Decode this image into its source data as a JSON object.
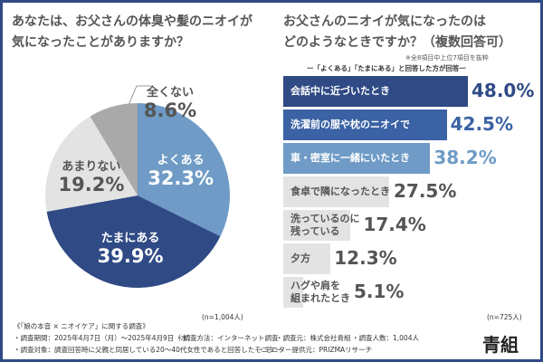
{
  "left": {
    "title_line1": "あなたは、お父さんの体臭や髪のニオイが",
    "title_line2": "気になったことがありますか？",
    "n": "(n=1,004人)"
  },
  "right": {
    "title_line1": "お父さんのニオイが気になったのは",
    "title_line2": "どのようなときですか？（複数回答可）",
    "note": "※全8項目中上位7項目を抜粋",
    "subtitle": "ー「よくある」「たまにある」と回答した方が回答ー",
    "n": "(n=725人)"
  },
  "chart_data": [
    {
      "type": "pie",
      "title": "あなたは、お父さんの体臭や髪のニオイが気になったことがありますか？",
      "slices": [
        {
          "label": "よくある",
          "value": 32.3,
          "display": "32.3%",
          "color": "#6f9bc6",
          "text_color": "#ffffff"
        },
        {
          "label": "たまにある",
          "value": 39.9,
          "display": "39.9%",
          "color": "#2f4a85",
          "text_color": "#ffffff"
        },
        {
          "label": "あまりない",
          "value": 19.2,
          "display": "19.2%",
          "color": "#e3e3e3",
          "text_color": "#555555"
        },
        {
          "label": "全くない",
          "value": 8.6,
          "display": "8.6%",
          "color": "#a9a9a9",
          "text_color": "#555555"
        }
      ]
    },
    {
      "type": "bar",
      "orientation": "horizontal",
      "title": "お父さんのニオイが気になったのはどのようなときですか？（複数回答可）",
      "bars": [
        {
          "label": "会話中に近づいたとき",
          "value": 48.0,
          "display": "48.0%",
          "color": "#2f4a85",
          "text_color": "#ffffff",
          "value_color": "#2f4a85"
        },
        {
          "label": "洗濯前の服や枕のニオイで",
          "value": 42.5,
          "display": "42.5%",
          "color": "#3a62a4",
          "text_color": "#ffffff",
          "value_color": "#3a62a4"
        },
        {
          "label": "車・密室に一緒にいたとき",
          "value": 38.2,
          "display": "38.2%",
          "color": "#6f9bc6",
          "text_color": "#ffffff",
          "value_color": "#6f9bc6"
        },
        {
          "label": "食卓で隣になったとき",
          "value": 27.5,
          "display": "27.5%",
          "color": "#e3e3e3",
          "text_color": "#555555",
          "value_color": "#555555"
        },
        {
          "label": "洗っているのに\n残っている",
          "value": 17.4,
          "display": "17.4%",
          "color": "#e3e3e3",
          "text_color": "#555555",
          "value_color": "#555555"
        },
        {
          "label": "夕方",
          "value": 12.3,
          "display": "12.3%",
          "color": "#e3e3e3",
          "text_color": "#555555",
          "value_color": "#555555"
        },
        {
          "label": "ハグや肩を\n組まれたとき",
          "value": 5.1,
          "display": "5.1%",
          "color": "#e3e3e3",
          "text_color": "#555555",
          "value_color": "#555555"
        }
      ]
    }
  ],
  "footer": {
    "survey_title": "《「娘の本音 × ニオイケア」に関する調査》",
    "period": "・調査期間：2025年4月7日（月）～2025年4月9日（水）",
    "method": "・調査方法：インターネット調査",
    "source": "・調査元：株式会社青組",
    "count": "・調査人数：1,004人",
    "target": "・調査対象：調査回答時に父親と同居している20～40代女性であると回答したモニター",
    "provider": "・モニター提供元：PRIZMAリサーチ",
    "logo": "青組"
  }
}
